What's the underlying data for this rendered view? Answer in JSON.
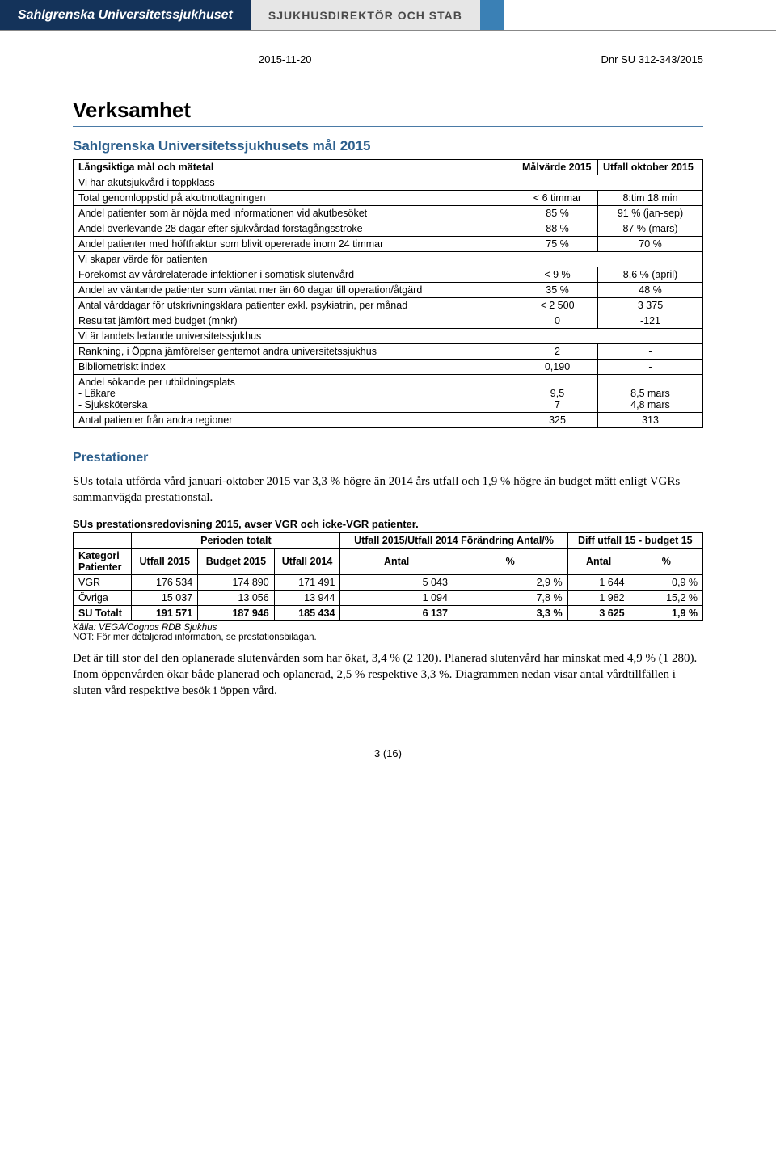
{
  "header": {
    "brand": "Sahlgrenska Universitetssjukhuset",
    "dept": "SJUKHUSDIREKTÖR OCH STAB",
    "date": "2015-11-20",
    "ref": "Dnr SU 312-343/2015"
  },
  "title": "Verksamhet",
  "section_goals": {
    "heading": "Sahlgrenska Universitetssjukhusets mål 2015",
    "col1": "Långsiktiga mål och mätetal",
    "col2": "Målvärde 2015",
    "col3": "Utfall oktober 2015",
    "groups": [
      {
        "header": "Vi har akutsjukvård i toppklass",
        "rows": [
          [
            "Total genomloppstid på akutmottagningen",
            "< 6 timmar",
            "8:tim 18 min"
          ],
          [
            "Andel patienter som är nöjda med informationen vid akutbesöket",
            "85 %",
            "91 % (jan-sep)"
          ],
          [
            "Andel överlevande 28 dagar efter sjukvårdad förstagångsstroke",
            "88 %",
            "87 % (mars)"
          ],
          [
            "Andel patienter med höftfraktur som blivit opererade inom 24 timmar",
            "75 %",
            "70 %"
          ]
        ]
      },
      {
        "header": "Vi skapar värde för patienten",
        "rows": [
          [
            "Förekomst av vårdrelaterade infektioner i somatisk slutenvård",
            "< 9 %",
            "8,6 % (april)"
          ],
          [
            "Andel av väntande patienter som väntat mer än 60 dagar till operation/åtgärd",
            "35 %",
            "48 %"
          ],
          [
            "Antal vårddagar för utskrivningsklara patienter exkl. psykiatrin, per månad",
            "< 2 500",
            "3 375"
          ],
          [
            "Resultat jämfört med budget (mnkr)",
            "0",
            "-121"
          ]
        ]
      },
      {
        "header": "Vi är landets ledande universitetssjukhus",
        "rows": [
          [
            "Rankning, i Öppna jämförelser gentemot andra universitetssjukhus",
            "2",
            "-"
          ],
          [
            "Bibliometriskt index",
            "0,190",
            "-"
          ],
          [
            "Andel sökande per utbildningsplats\n- Läkare\n- Sjuksköterska",
            "\n9,5\n7",
            "\n8,5 mars\n4,8 mars"
          ],
          [
            "Antal patienter från andra regioner",
            "325",
            "313"
          ]
        ]
      }
    ]
  },
  "section_perf": {
    "heading": "Prestationer",
    "para1": "SUs totala utförda vård januari-oktober 2015 var 3,3 % högre än 2014 års utfall och 1,9 % högre än budget mätt enligt VGRs sammanvägda prestationstal.",
    "caption": "SUs prestationsredovisning 2015, avser VGR och icke-VGR patienter.",
    "head_top": {
      "kategori": "Kategori",
      "period": "Perioden totalt",
      "diff14": "Utfall 2015/Utfall 2014 Förändring Antal/%",
      "diffbud": "Diff utfall 15 - budget 15"
    },
    "head_sub": {
      "patienter": "Patienter",
      "u15": "Utfall 2015",
      "b15": "Budget 2015",
      "u14": "Utfall 2014",
      "antal": "Antal",
      "pct": "%",
      "antal2": "Antal",
      "pct2": "%"
    },
    "rows": [
      {
        "label": "VGR",
        "u15": "176 534",
        "b15": "174 890",
        "u14": "171 491",
        "a1": "5 043",
        "p1": "2,9 %",
        "a2": "1 644",
        "p2": "0,9 %",
        "bold": false
      },
      {
        "label": "Övriga",
        "u15": "15 037",
        "b15": "13 056",
        "u14": "13 944",
        "a1": "1 094",
        "p1": "7,8 %",
        "a2": "1 982",
        "p2": "15,2 %",
        "bold": false
      },
      {
        "label": "SU Totalt",
        "u15": "191 571",
        "b15": "187 946",
        "u14": "185 434",
        "a1": "6 137",
        "p1": "3,3 %",
        "a2": "3 625",
        "p2": "1,9 %",
        "bold": true
      }
    ],
    "source": "Källa: VEGA/Cognos RDB Sjukhus",
    "note": "NOT: För mer detaljerad information, se prestationsbilagan.",
    "para2": "Det är till stor del den oplanerade slutenvården som har ökat, 3,4 % (2 120). Planerad slutenvård har minskat med 4,9 % (1 280). Inom öppenvården ökar både planerad och oplanerad, 2,5 % respektive 3,3 %. Diagrammen nedan visar antal vårdtillfällen i sluten vård respektive besök i öppen vård."
  },
  "pagenum": "3 (16)"
}
